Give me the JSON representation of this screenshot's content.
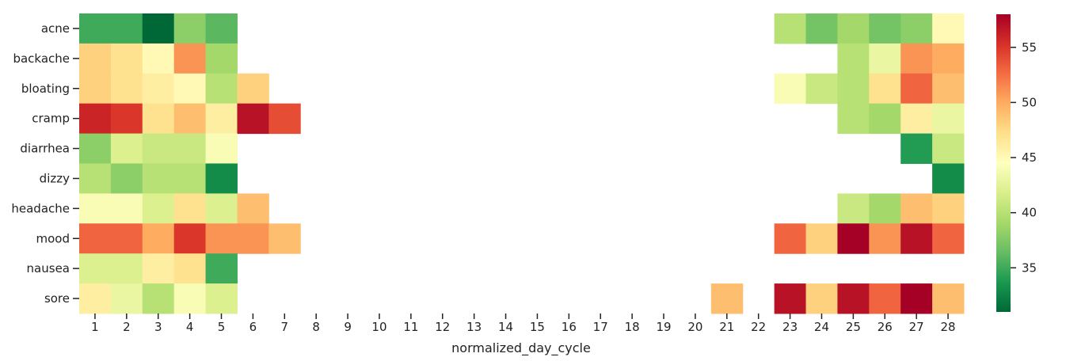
{
  "chart_data": {
    "type": "heatmap",
    "title": "",
    "xlabel": "normalized_day_cycle",
    "ylabel": "",
    "x": [
      1,
      2,
      3,
      4,
      5,
      6,
      7,
      8,
      9,
      10,
      11,
      12,
      13,
      14,
      15,
      16,
      17,
      18,
      19,
      20,
      21,
      22,
      23,
      24,
      25,
      26,
      27,
      28
    ],
    "y": [
      "acne",
      "backache",
      "bloating",
      "cramp",
      "diarrhea",
      "dizzy",
      "headache",
      "mood",
      "nausea",
      "sore"
    ],
    "values": [
      [
        35,
        35,
        31,
        38,
        36,
        null,
        null,
        null,
        null,
        null,
        null,
        null,
        null,
        null,
        null,
        null,
        null,
        null,
        null,
        null,
        null,
        null,
        40,
        37,
        39,
        37,
        38,
        45
      ],
      [
        48,
        47,
        45,
        51,
        39,
        null,
        null,
        null,
        null,
        null,
        null,
        null,
        null,
        null,
        null,
        null,
        null,
        null,
        null,
        null,
        null,
        null,
        null,
        null,
        40,
        43,
        51,
        50
      ],
      [
        48,
        47,
        46,
        45,
        40,
        48,
        null,
        null,
        null,
        null,
        null,
        null,
        null,
        null,
        null,
        null,
        null,
        null,
        null,
        null,
        null,
        null,
        44,
        41,
        40,
        47,
        53,
        49
      ],
      [
        56,
        55,
        47,
        49,
        46,
        57,
        54,
        null,
        null,
        null,
        null,
        null,
        null,
        null,
        null,
        null,
        null,
        null,
        null,
        null,
        null,
        null,
        null,
        null,
        40,
        39,
        46,
        43
      ],
      [
        38,
        42,
        41,
        41,
        44,
        null,
        null,
        null,
        null,
        null,
        null,
        null,
        null,
        null,
        null,
        null,
        null,
        null,
        null,
        null,
        null,
        null,
        null,
        null,
        null,
        null,
        34,
        41
      ],
      [
        40,
        38,
        40,
        40,
        33,
        null,
        null,
        null,
        null,
        null,
        null,
        null,
        null,
        null,
        null,
        null,
        null,
        null,
        null,
        null,
        null,
        null,
        null,
        null,
        null,
        null,
        null,
        33
      ],
      [
        44,
        44,
        42,
        47,
        42,
        49,
        null,
        null,
        null,
        null,
        null,
        null,
        null,
        null,
        null,
        null,
        null,
        null,
        null,
        null,
        null,
        null,
        null,
        null,
        41,
        39,
        49,
        48
      ],
      [
        53,
        53,
        50,
        55,
        51,
        51,
        49,
        null,
        null,
        null,
        null,
        null,
        null,
        null,
        null,
        null,
        null,
        null,
        null,
        null,
        null,
        null,
        53,
        48,
        58,
        51,
        57,
        53
      ],
      [
        42,
        42,
        46,
        47,
        35,
        null,
        null,
        null,
        null,
        null,
        null,
        null,
        null,
        null,
        null,
        null,
        null,
        null,
        null,
        null,
        null,
        null,
        null,
        null,
        null,
        null,
        null,
        null
      ],
      [
        46,
        43,
        40,
        44,
        42,
        null,
        null,
        null,
        null,
        null,
        null,
        null,
        null,
        null,
        null,
        null,
        null,
        null,
        null,
        null,
        49,
        null,
        57,
        48,
        57,
        53,
        58,
        49
      ]
    ],
    "colorscale": "RdYlGn_r",
    "vmin": 31,
    "vmax": 58,
    "colorbar_ticks": [
      35,
      40,
      45,
      50,
      55
    ]
  }
}
